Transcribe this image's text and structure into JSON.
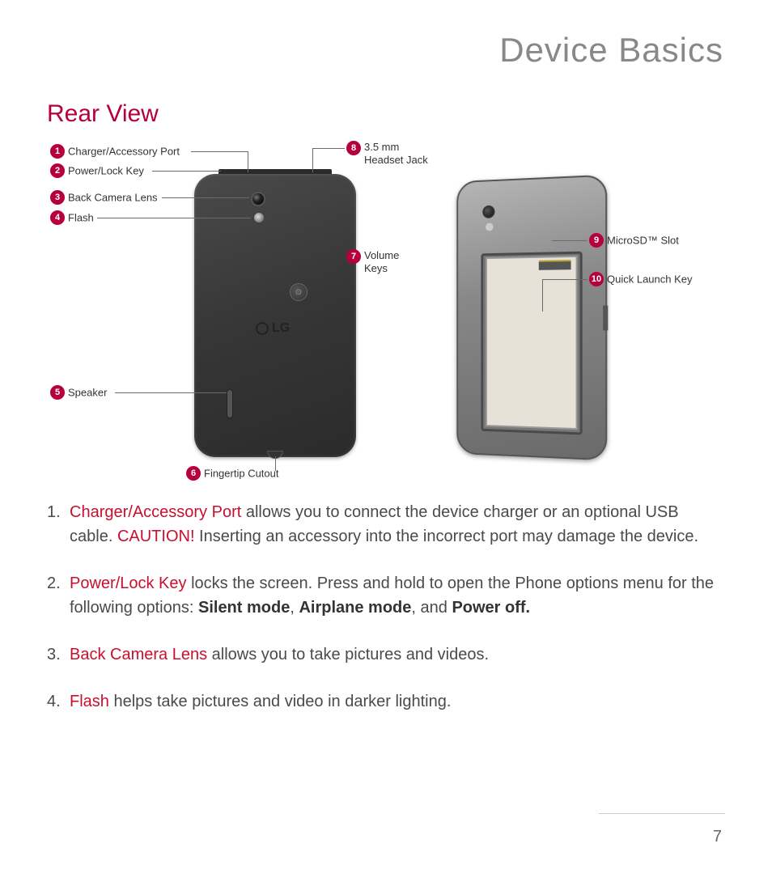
{
  "page": {
    "title": "Device Basics",
    "section": "Rear View",
    "number": "7"
  },
  "diagram": {
    "logo_text": "LG",
    "callouts": [
      {
        "n": "1",
        "label": "Charger/Accessory Port"
      },
      {
        "n": "2",
        "label": "Power/Lock Key"
      },
      {
        "n": "3",
        "label": "Back Camera Lens"
      },
      {
        "n": "4",
        "label": "Flash"
      },
      {
        "n": "5",
        "label": "Speaker"
      },
      {
        "n": "6",
        "label": "Fingertip Cutout"
      },
      {
        "n": "7",
        "label": "Volume\nKeys"
      },
      {
        "n": "8",
        "label": "3.5 mm\nHeadset Jack"
      },
      {
        "n": "9",
        "label": "MicroSD™ Slot"
      },
      {
        "n": "10",
        "label": "Quick Launch Key"
      }
    ]
  },
  "descriptions": [
    {
      "n": "1.",
      "term": "Charger/Accessory Port",
      "text1": " allows you to connect the device charger or an optional USB cable. ",
      "caution": "CAUTION!",
      "text2": " Inserting an accessory into the incorrect port may damage the device."
    },
    {
      "n": "2.",
      "term": "Power/Lock Key",
      "text1": " locks the screen. Press and hold to open the Phone options menu for the following options: ",
      "bold_list": [
        "Silent mode",
        "Airplane mode",
        "Power off."
      ],
      "joiner": ", ",
      "joiner_last": ", and "
    },
    {
      "n": "3.",
      "term": "Back Camera Lens",
      "text1": " allows you to take pictures and videos."
    },
    {
      "n": "4.",
      "term": "Flash",
      "text1": " helps take pictures and video in darker lighting."
    }
  ],
  "colors": {
    "accent": "#b5003c",
    "red_text": "#c8102e",
    "title_gray": "#888888",
    "body_text": "#4a4a4a"
  }
}
